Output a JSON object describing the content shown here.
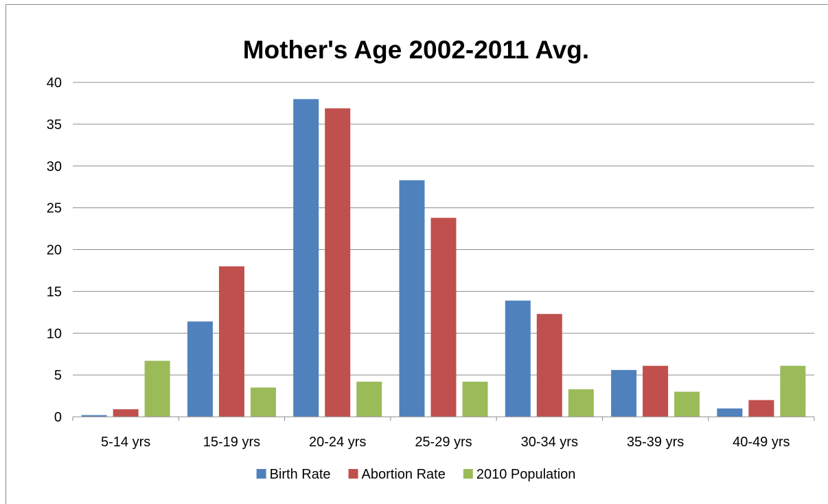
{
  "chart_data": {
    "type": "bar",
    "title": "Mother's Age 2002-2011 Avg.",
    "xlabel": "",
    "ylabel": "",
    "categories": [
      "5-14 yrs",
      "15-19 yrs",
      "20-24 yrs",
      "25-29 yrs",
      "30-34 yrs",
      "35-39 yrs",
      "40-49 yrs"
    ],
    "series": [
      {
        "name": "Birth Rate",
        "color": "#4f81bd",
        "values": [
          0.2,
          11.4,
          38.0,
          28.3,
          13.9,
          5.6,
          1.0
        ]
      },
      {
        "name": "Abortion Rate",
        "color": "#c0504d",
        "values": [
          0.9,
          18.0,
          36.9,
          23.8,
          12.3,
          6.1,
          2.0
        ]
      },
      {
        "name": "2010 Population",
        "color": "#9bbb59",
        "values": [
          6.7,
          3.5,
          4.2,
          4.2,
          3.3,
          3.0,
          6.1
        ]
      }
    ],
    "ylim": [
      0,
      40
    ],
    "yticks": [
      "0",
      "5",
      "10",
      "15",
      "20",
      "25",
      "30",
      "35",
      "40"
    ],
    "grid": true,
    "legend_position": "bottom"
  }
}
